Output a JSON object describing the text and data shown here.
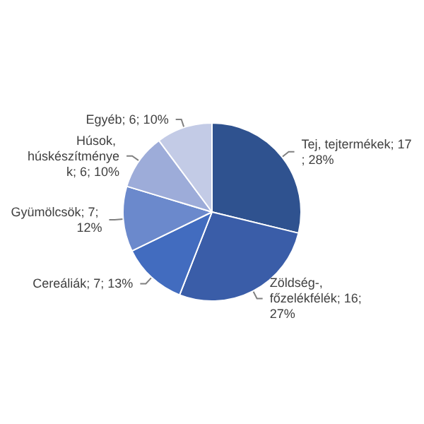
{
  "chart_data": {
    "type": "pie",
    "categories": [
      "Tej, tejtermékek",
      "Zöldség-, főzelékfélék",
      "Cereáliák",
      "Gyümölcsök",
      "Húsok, húskészítmények",
      "Egyéb"
    ],
    "values": [
      17,
      16,
      7,
      7,
      6,
      6
    ],
    "value_labels": [
      "; 17; 28%",
      "; 16; 27%",
      "; 7; 13%",
      "; 7; 12%",
      "; 6; 10%",
      "; 6; 10%"
    ],
    "colors": [
      "#2f528f",
      "#3a5da8",
      "#426cbf",
      "#6b89cc",
      "#9dacd9",
      "#c3cbe6"
    ],
    "legend": false
  }
}
